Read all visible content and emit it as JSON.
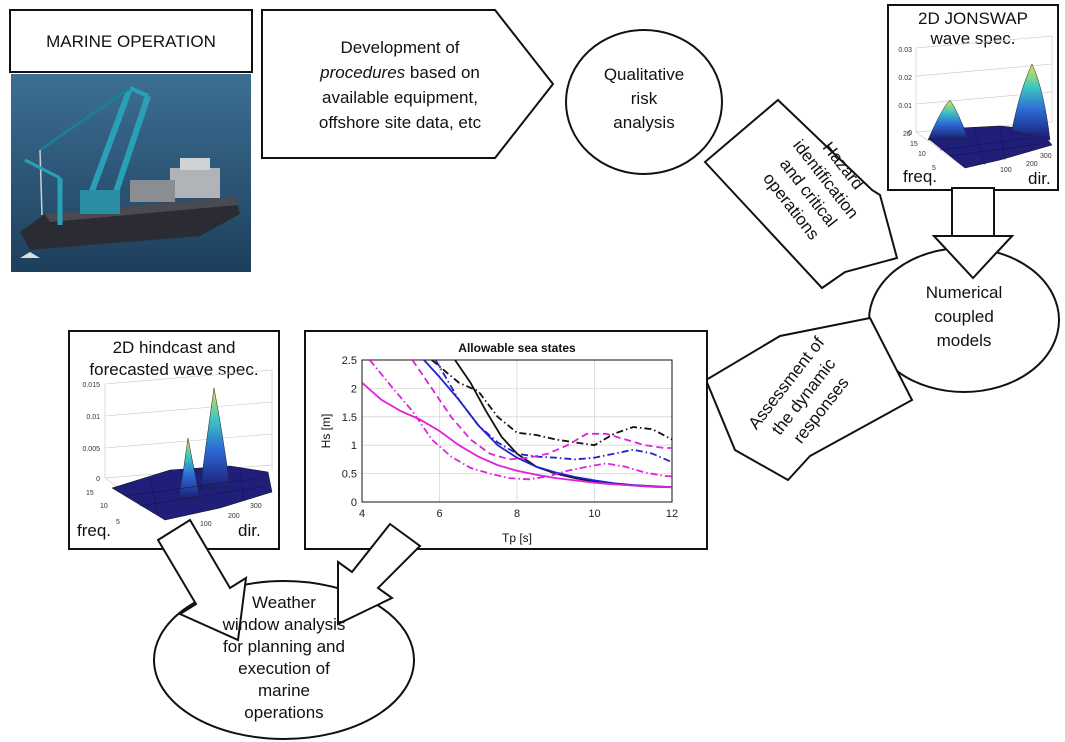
{
  "nodes": {
    "marine_operation": {
      "title": "MARINE OPERATION"
    },
    "procedures": {
      "line1": "Development of",
      "line2_italic": "procedures",
      "line2_rest": " based on",
      "line3": "available equipment,",
      "line4": "offshore site data, etc"
    },
    "qualitative_risk": {
      "lines": [
        "Qualitative",
        "risk",
        "analysis"
      ]
    },
    "hazard": {
      "lines": [
        "Hazard",
        "identification",
        "and critical",
        "operations"
      ]
    },
    "jonswap": {
      "title_lines": [
        "2D JONSWAP",
        "wave spec."
      ],
      "z_ticks": [
        "0.03",
        "0.02",
        "0.01",
        "0"
      ],
      "freq_ticks": [
        "20",
        "15",
        "10",
        "5"
      ],
      "dir_ticks": [
        "100",
        "200",
        "300"
      ],
      "freq_label": "freq.",
      "dir_label": "dir."
    },
    "numerical": {
      "lines": [
        "Numerical",
        "coupled",
        "models"
      ]
    },
    "assessment": {
      "lines": [
        "Assessment of",
        "the dynamic",
        "responses"
      ]
    },
    "hindcast": {
      "title_lines": [
        "2D hindcast and",
        "forecasted wave spec."
      ],
      "z_ticks": [
        "0.015",
        "0.01",
        "0.005",
        "0"
      ],
      "freq_ticks": [
        "15",
        "10",
        "5"
      ],
      "dir_ticks": [
        "100",
        "200",
        "300"
      ],
      "freq_label": "freq.",
      "dir_label": "dir."
    },
    "weather": {
      "lines": [
        "Weather",
        "window analysis",
        "for planning and",
        "execution of",
        "marine",
        "operations"
      ]
    }
  },
  "chart_data": {
    "type": "line",
    "title": "Allowable sea states",
    "xlabel": "Tp [s]",
    "ylabel": "Hs [m]",
    "xlim": [
      4,
      12
    ],
    "ylim": [
      0,
      2.5
    ],
    "xticks": [
      4,
      6,
      8,
      10,
      12
    ],
    "yticks": [
      0,
      0.5,
      1,
      1.5,
      2,
      2.5
    ],
    "grid": true,
    "series": [
      {
        "color": "#111111",
        "dash": "solid",
        "x": [
          6.4,
          6.8,
          7.2,
          7.6,
          8.0,
          8.5,
          9.0,
          9.5,
          10.0,
          10.5,
          11.0,
          11.5,
          12.0
        ],
        "y": [
          2.5,
          2.1,
          1.6,
          1.15,
          0.85,
          0.62,
          0.5,
          0.42,
          0.36,
          0.32,
          0.29,
          0.27,
          0.26
        ]
      },
      {
        "color": "#111111",
        "dash": "dashdot",
        "x": [
          5.8,
          6.5,
          7.0,
          7.5,
          8.0,
          8.5,
          9.0,
          9.5,
          10.0,
          10.5,
          11.0,
          11.5,
          12.0
        ],
        "y": [
          2.5,
          2.1,
          1.95,
          1.5,
          1.22,
          1.18,
          1.1,
          1.05,
          1.0,
          1.2,
          1.32,
          1.28,
          1.1
        ]
      },
      {
        "color": "#2222cc",
        "dash": "solid",
        "x": [
          5.6,
          6.0,
          6.5,
          7.0,
          7.5,
          8.0,
          8.5,
          9.0,
          9.5,
          10.0,
          10.5,
          11.0,
          11.5,
          12.0
        ],
        "y": [
          2.5,
          2.2,
          1.8,
          1.35,
          1.0,
          0.78,
          0.62,
          0.52,
          0.44,
          0.38,
          0.33,
          0.3,
          0.28,
          0.26
        ]
      },
      {
        "color": "#2222cc",
        "dash": "dashdot",
        "x": [
          5.9,
          6.5,
          7.0,
          7.5,
          8.0,
          8.5,
          9.0,
          9.5,
          10.0,
          10.5,
          11.0,
          11.5,
          12.0
        ],
        "y": [
          2.5,
          1.8,
          1.35,
          1.05,
          0.85,
          0.8,
          0.78,
          0.75,
          0.78,
          0.85,
          0.92,
          0.85,
          0.7
        ]
      },
      {
        "color": "#dd22dd",
        "dash": "solid",
        "x": [
          4.0,
          4.5,
          5.0,
          5.5,
          6.0,
          6.5,
          7.0,
          7.5,
          8.0,
          8.5,
          9.0,
          9.5,
          10.0,
          10.5,
          11.0,
          11.5,
          12.0
        ],
        "y": [
          2.1,
          1.8,
          1.6,
          1.45,
          1.25,
          1.0,
          0.8,
          0.65,
          0.55,
          0.48,
          0.42,
          0.38,
          0.34,
          0.31,
          0.29,
          0.27,
          0.26
        ]
      },
      {
        "color": "#dd22dd",
        "dash": "dashed",
        "x": [
          5.3,
          5.8,
          6.3,
          6.8,
          7.3,
          7.8,
          8.3,
          8.8,
          9.3,
          9.8,
          10.3,
          10.8,
          11.3,
          11.8,
          12.0
        ],
        "y": [
          2.5,
          2.0,
          1.5,
          1.1,
          0.85,
          0.75,
          0.78,
          0.85,
          1.0,
          1.2,
          1.2,
          1.1,
          1.0,
          0.95,
          0.95
        ]
      },
      {
        "color": "#dd22dd",
        "dash": "dashdot",
        "x": [
          4.2,
          4.8,
          5.3,
          5.8,
          6.3,
          6.8,
          7.3,
          7.8,
          8.3,
          8.8,
          9.3,
          9.8,
          10.3,
          10.8,
          11.3,
          11.8,
          12.0
        ],
        "y": [
          2.5,
          2.0,
          1.6,
          1.1,
          0.8,
          0.6,
          0.5,
          0.42,
          0.4,
          0.45,
          0.55,
          0.62,
          0.68,
          0.62,
          0.52,
          0.46,
          0.45
        ]
      }
    ]
  }
}
